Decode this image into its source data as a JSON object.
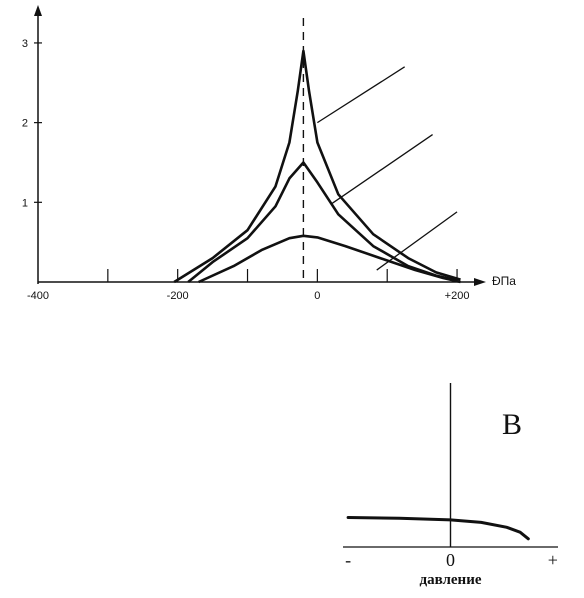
{
  "chart_data": [
    {
      "type": "line",
      "xlim": [
        -400,
        230
      ],
      "ylim": [
        0,
        3.2
      ],
      "x_ticks": [
        {
          "value": -400,
          "label": "-400"
        },
        {
          "value": -300,
          "label": ""
        },
        {
          "value": -200,
          "label": "-200"
        },
        {
          "value": -100,
          "label": ""
        },
        {
          "value": 0,
          "label": "0"
        },
        {
          "value": 100,
          "label": ""
        },
        {
          "value": 200,
          "label": "+200"
        }
      ],
      "y_ticks": [
        {
          "value": 1,
          "label": "1"
        },
        {
          "value": 2,
          "label": "2"
        },
        {
          "value": 3,
          "label": "3"
        }
      ],
      "x_unit_label": "ÐПа",
      "peak_line_x": -20,
      "series": [
        {
          "x": [
            -205,
            -150,
            -100,
            -60,
            -40,
            -28,
            -20,
            -12,
            0,
            30,
            80,
            130,
            170,
            205
          ],
          "y": [
            0,
            0.3,
            0.65,
            1.2,
            1.75,
            2.4,
            2.9,
            2.4,
            1.75,
            1.1,
            0.6,
            0.3,
            0.12,
            0.03
          ]
        },
        {
          "x": [
            -185,
            -150,
            -100,
            -60,
            -40,
            -20,
            0,
            30,
            80,
            130,
            170,
            200
          ],
          "y": [
            0,
            0.25,
            0.55,
            0.95,
            1.3,
            1.5,
            1.25,
            0.85,
            0.45,
            0.2,
            0.08,
            0.02
          ]
        },
        {
          "x": [
            -170,
            -120,
            -80,
            -40,
            -20,
            0,
            40,
            90,
            140,
            180,
            205
          ],
          "y": [
            0,
            0.2,
            0.4,
            0.55,
            0.58,
            0.56,
            0.45,
            0.3,
            0.15,
            0.05,
            0
          ]
        }
      ],
      "leader_lines": [
        {
          "from": {
            "x": 0,
            "y": 2.0
          },
          "to": {
            "x": 125,
            "y": 2.7
          }
        },
        {
          "from": {
            "x": 20,
            "y": 0.98
          },
          "to": {
            "x": 165,
            "y": 1.85
          }
        },
        {
          "from": {
            "x": 85,
            "y": 0.15
          },
          "to": {
            "x": 200,
            "y": 0.88
          }
        }
      ]
    },
    {
      "type": "line",
      "panel_label": "B",
      "x_axis_label": "давление",
      "x_ticks": [
        {
          "value": -1,
          "label": "-"
        },
        {
          "value": 0,
          "label": "0"
        },
        {
          "value": 1,
          "label": "+"
        }
      ],
      "xlim": [
        -1.05,
        1.05
      ],
      "ylim": [
        0,
        1
      ],
      "series": [
        {
          "x": [
            -1.0,
            -0.5,
            0,
            0.3,
            0.55,
            0.68,
            0.76
          ],
          "y": [
            0.18,
            0.175,
            0.165,
            0.15,
            0.12,
            0.09,
            0.05
          ]
        }
      ]
    }
  ]
}
